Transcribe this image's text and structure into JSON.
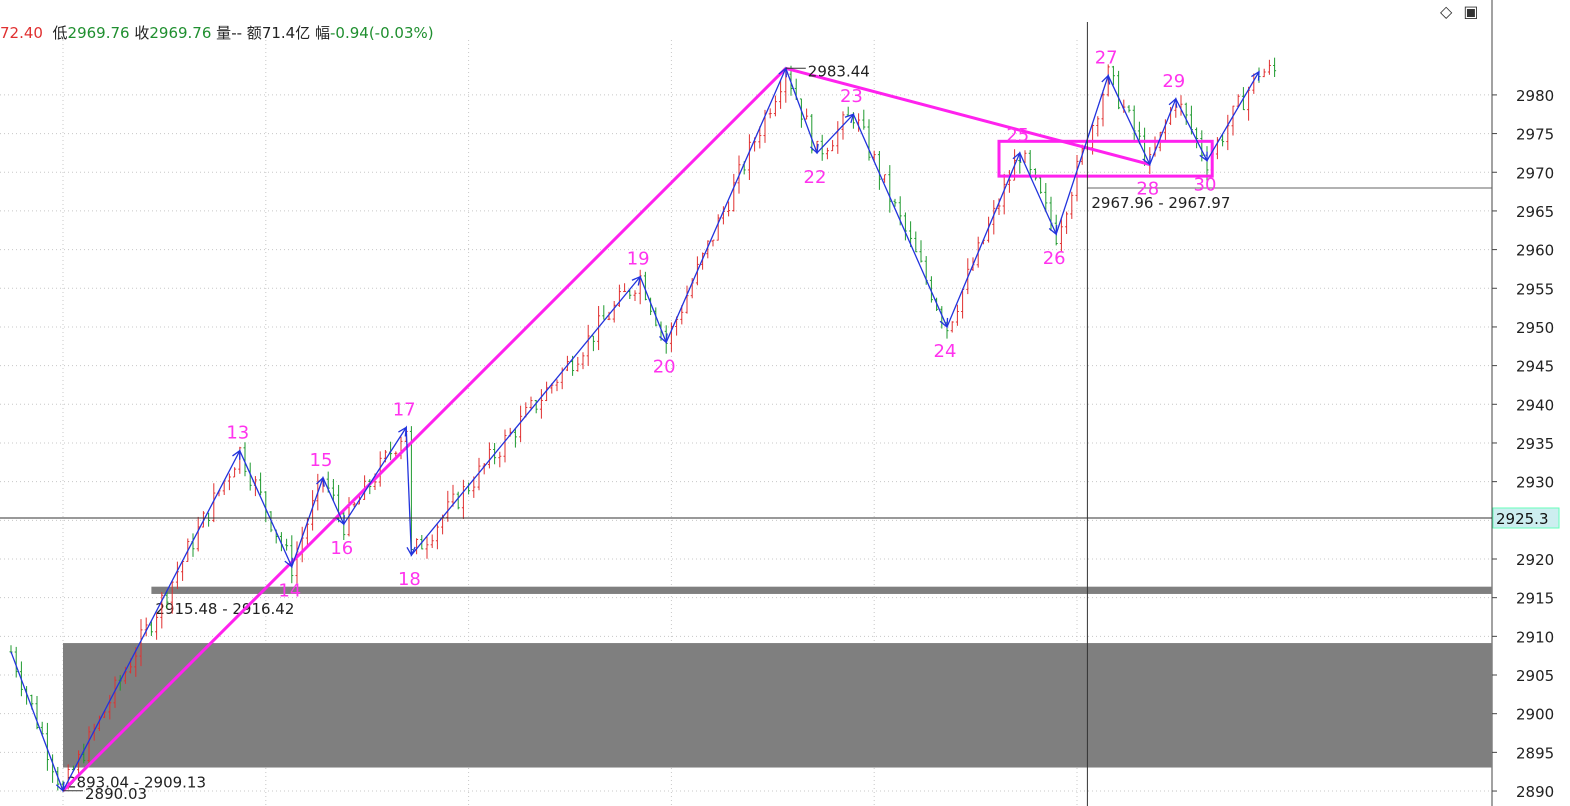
{
  "header": {
    "high_label": "",
    "high_value": "72.40",
    "low_label": "低",
    "low_value": "2969.76",
    "close_label": "收",
    "close_value": "2969.76",
    "volume_label": "量",
    "volume_value": "--",
    "amount_label": "额",
    "amount_value": "71.4亿",
    "range_label": "幅",
    "range_value": "-0.94(-0.03%)"
  },
  "window_icons": [
    "diamond-icon",
    "restore-icon"
  ],
  "colors": {
    "up": "#e03030",
    "down": "#1f9a2f",
    "wave": "#2233dd",
    "trend": "#ff22ee",
    "label": "#ff33ee",
    "zone": "#7f7f7f",
    "axis_badge": "#cdeef0"
  },
  "chart_data": {
    "type": "candlestick",
    "y_axis": {
      "min": 2888,
      "max": 2986,
      "ticks": [
        2890,
        2895,
        2900,
        2905,
        2910,
        2915,
        2920,
        2925,
        2930,
        2935,
        2940,
        2945,
        2950,
        2955,
        2960,
        2965,
        2970,
        2975,
        2980
      ]
    },
    "grid": "dotted vertical and horizontal",
    "crosshair": {
      "price": 2925.3,
      "price_label": "2925.3",
      "x_bar": 207
    },
    "wave_points": [
      {
        "bar": 0,
        "price": 2908.0,
        "label": ""
      },
      {
        "bar": 10,
        "price": 2890.03,
        "label": ""
      },
      {
        "bar": 44,
        "price": 2934.0,
        "label": "13"
      },
      {
        "bar": 54,
        "price": 2919.0,
        "label": "14"
      },
      {
        "bar": 60,
        "price": 2930.5,
        "label": "15"
      },
      {
        "bar": 64,
        "price": 2924.5,
        "label": "16"
      },
      {
        "bar": 76,
        "price": 2937.0,
        "label": "17"
      },
      {
        "bar": 77,
        "price": 2920.5,
        "label": "18"
      },
      {
        "bar": 121,
        "price": 2956.5,
        "label": "19"
      },
      {
        "bar": 126,
        "price": 2948.0,
        "label": "20"
      },
      {
        "bar": 149,
        "price": 2983.44,
        "label": ""
      },
      {
        "bar": 155,
        "price": 2972.5,
        "label": "22"
      },
      {
        "bar": 162,
        "price": 2977.5,
        "label": "23"
      },
      {
        "bar": 180,
        "price": 2950.0,
        "label": "24"
      },
      {
        "bar": 194,
        "price": 2972.5,
        "label": "25"
      },
      {
        "bar": 201,
        "price": 2962.0,
        "label": "26"
      },
      {
        "bar": 211,
        "price": 2982.5,
        "label": "27"
      },
      {
        "bar": 219,
        "price": 2971.0,
        "label": "28"
      },
      {
        "bar": 224,
        "price": 2979.5,
        "label": "29"
      },
      {
        "bar": 230,
        "price": 2971.5,
        "label": "30"
      },
      {
        "bar": 240,
        "price": 2983.0,
        "label": ""
      }
    ],
    "trend_lines": [
      {
        "from_bar": 10,
        "from_price": 2890.03,
        "to_bar": 149,
        "to_price": 2983.44
      },
      {
        "from_bar": 149,
        "from_price": 2983.44,
        "to_bar": 219,
        "to_price": 2971.0
      }
    ],
    "zones": [
      {
        "from_bar": 10,
        "low": 2893.04,
        "high": 2909.13,
        "label": "2893.04 - 2909.13",
        "style": "fill"
      },
      {
        "from_bar": 27,
        "low": 2915.48,
        "high": 2916.42,
        "label": "2915.48 - 2916.42",
        "style": "fill"
      },
      {
        "from_bar": 207,
        "low": 2967.96,
        "high": 2967.97,
        "label": "2967.96 - 2967.97",
        "style": "line"
      }
    ],
    "box": {
      "from_bar": 190,
      "to_bar": 231,
      "low": 2969.5,
      "high": 2974.0
    },
    "price_marks": [
      {
        "bar": 149,
        "price": 2983.44,
        "label": "2983.44"
      },
      {
        "bar": 10,
        "price": 2890.03,
        "label": "2890.03"
      }
    ]
  }
}
